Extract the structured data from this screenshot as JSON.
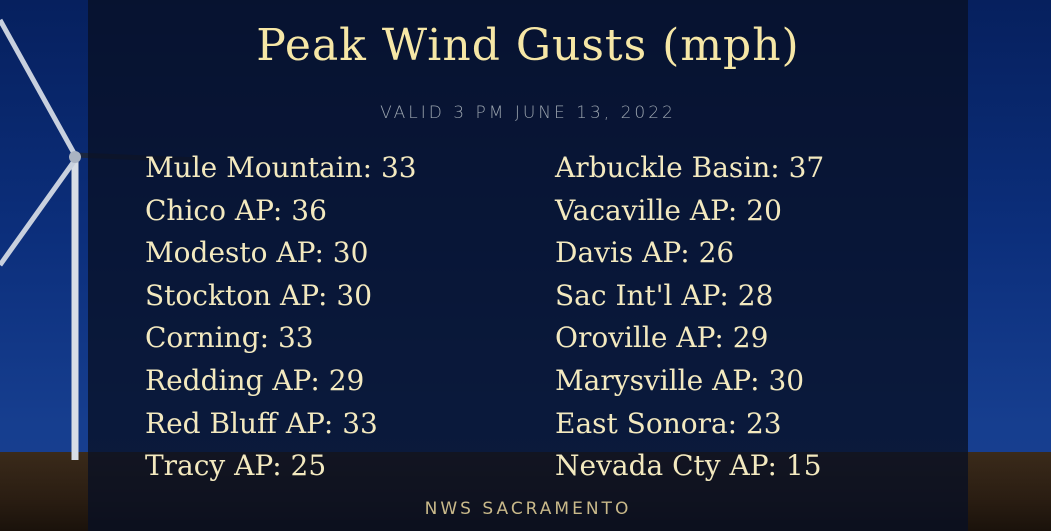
{
  "title": "Peak Wind Gusts (mph)",
  "subtitle": "VALID 3 PM JUNE 13, 2022",
  "left_column": [
    "Mule Mountain: 33",
    "Chico AP: 36",
    "Modesto AP: 30",
    "Stockton AP: 30",
    "Corning: 33",
    "Redding AP: 29",
    "Red Bluff AP: 33",
    "Tracy AP: 25"
  ],
  "right_column": [
    "Arbuckle Basin: 37",
    "Vacaville AP: 20",
    "Davis AP: 26",
    "Sac Int'l AP: 28",
    "Oroville AP: 29",
    "Marysville AP: 30",
    "East Sonora: 23",
    "Nevada Cty AP: 15"
  ],
  "footer": "NWS SACRAMENTO",
  "colors": {
    "title": "#f6e7a6",
    "text": "#f3e9bf",
    "sky": "#0c2f7c"
  }
}
